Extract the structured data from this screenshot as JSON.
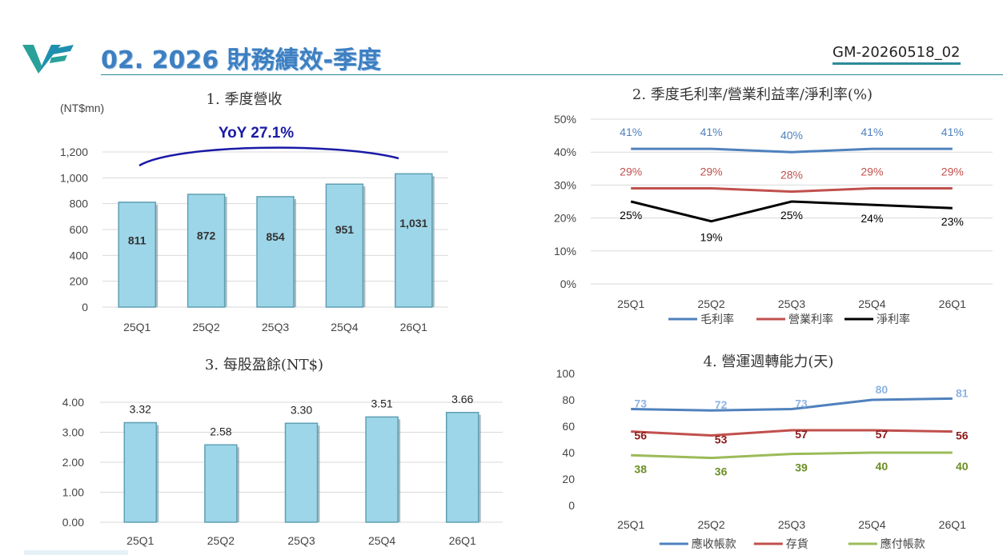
{
  "header": {
    "title": "02. 2026 財務績效-季度",
    "doc_code": "GM-20260518_02",
    "logo_icon": "vf-logo-icon",
    "accent_color": "#3d7fc1",
    "rule_color": "#2c8a9a"
  },
  "chart_data": [
    {
      "type": "bar",
      "title": "1. 季度營收",
      "unit_label": "(NT$mn)",
      "annotation": "YoY  27.1%",
      "categories": [
        "25Q1",
        "25Q2",
        "25Q3",
        "25Q4",
        "26Q1"
      ],
      "values": [
        811,
        872,
        854,
        951,
        1031
      ],
      "value_labels": [
        "811",
        "872",
        "854",
        "951",
        "1,031"
      ],
      "yticks": [
        "0",
        "200",
        "400",
        "600",
        "800",
        "1,000",
        "1,200"
      ],
      "ylim": [
        0,
        1200
      ],
      "grid": true,
      "bar_color": "#9dd6e8"
    },
    {
      "type": "line",
      "title": "2. 季度毛利率/營業利益率/淨利率(%)",
      "categories": [
        "25Q1",
        "25Q2",
        "25Q3",
        "25Q4",
        "26Q1"
      ],
      "yticks": [
        "0%",
        "10%",
        "20%",
        "30%",
        "40%",
        "50%"
      ],
      "ylim": [
        0,
        50
      ],
      "grid": true,
      "legend_position": "bottom",
      "series": [
        {
          "name": "毛利率",
          "values": [
            41,
            41,
            40,
            41,
            41
          ],
          "labels": [
            "41%",
            "41%",
            "40%",
            "41%",
            "41%"
          ],
          "color": "#4f81bd"
        },
        {
          "name": "營業利率",
          "values": [
            29,
            29,
            28,
            29,
            29
          ],
          "labels": [
            "29%",
            "29%",
            "28%",
            "29%",
            "29%"
          ],
          "color": "#c0504d"
        },
        {
          "name": "淨利率",
          "values": [
            25,
            19,
            25,
            24,
            23
          ],
          "labels": [
            "25%",
            "19%",
            "25%",
            "24%",
            "23%"
          ],
          "color": "#000000"
        }
      ]
    },
    {
      "type": "bar",
      "title": "3. 每股盈餘(NT$)",
      "categories": [
        "25Q1",
        "25Q2",
        "25Q3",
        "25Q4",
        "26Q1"
      ],
      "values": [
        3.32,
        2.58,
        3.3,
        3.51,
        3.66
      ],
      "value_labels": [
        "3.32",
        "2.58",
        "3.30",
        "3.51",
        "3.66"
      ],
      "yticks": [
        "0.00",
        "1.00",
        "2.00",
        "3.00",
        "4.00"
      ],
      "ylim": [
        0,
        4
      ],
      "grid": true,
      "bar_color": "#9dd6e8"
    },
    {
      "type": "line",
      "title": "4. 營運週轉能力(天)",
      "categories": [
        "25Q1",
        "25Q2",
        "25Q3",
        "25Q4",
        "26Q1"
      ],
      "yticks": [
        "0",
        "20",
        "40",
        "60",
        "80",
        "100"
      ],
      "ylim": [
        0,
        100
      ],
      "grid": false,
      "legend_position": "bottom",
      "series": [
        {
          "name": "應收帳款",
          "values": [
            73,
            72,
            73,
            80,
            81
          ],
          "labels": [
            "73",
            "72",
            "73",
            "80",
            "81"
          ],
          "color": "#4f81bd",
          "label_color": "#8eb4e3"
        },
        {
          "name": "存貨",
          "values": [
            56,
            53,
            57,
            57,
            56
          ],
          "labels": [
            "56",
            "53",
            "57",
            "57",
            "56"
          ],
          "color": "#c0504d",
          "label_color": "#8b1a1a"
        },
        {
          "name": "應付帳款",
          "values": [
            38,
            36,
            39,
            40,
            40
          ],
          "labels": [
            "38",
            "36",
            "39",
            "40",
            "40"
          ],
          "color": "#9bbb59",
          "label_color": "#6b8e23"
        }
      ]
    }
  ]
}
